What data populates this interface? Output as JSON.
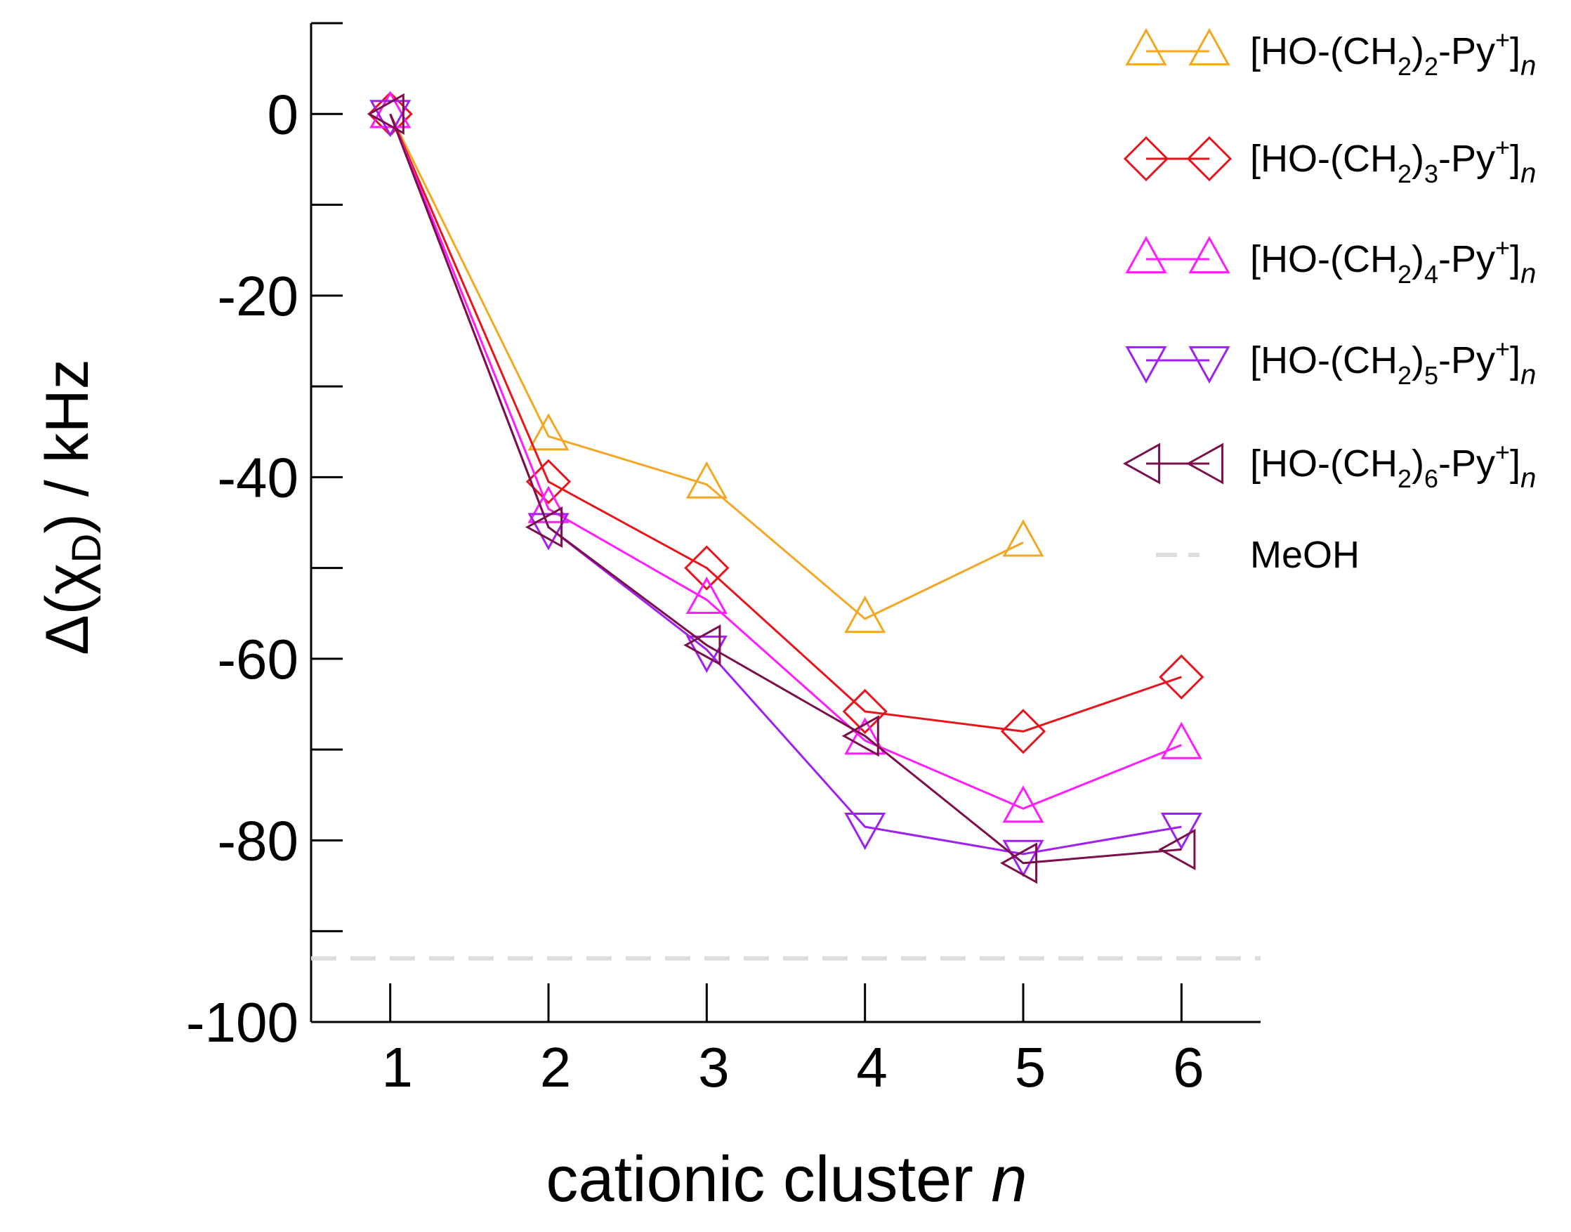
{
  "chart_data": {
    "type": "line",
    "title": "",
    "xlabel": "cationic cluster",
    "xlabel_var": "n",
    "ylabel": "Δ(χ",
    "ylabel_sub": "D",
    "ylabel_tail": ") / kHz",
    "xlim": [
      0.5,
      6.5
    ],
    "ylim": [
      -100,
      10
    ],
    "xticks": [
      1,
      2,
      3,
      4,
      5,
      6
    ],
    "yticks_major": [
      0,
      -20,
      -40,
      -60,
      -80,
      -100
    ],
    "yticks_minor": [
      10,
      -10,
      -30,
      -50,
      -70,
      -90
    ],
    "grid": false,
    "legend_position": "top-right",
    "x": [
      1,
      2,
      3,
      4,
      5,
      6
    ],
    "series": [
      {
        "name": "[HO-(CH2)2-Py+]n",
        "label_pre": "[HO-(CH",
        "label_sub": "2",
        "label_mid": ")",
        "label_sub2": "2",
        "label_post": "-Py",
        "label_sup": "+",
        "label_close": "]",
        "label_var": "n",
        "color": "#f5a623",
        "marker": "triangle-up",
        "x": [
          1,
          2,
          3,
          4,
          5
        ],
        "values": [
          0,
          -35.5,
          -40.8,
          -55.6,
          -47.2
        ]
      },
      {
        "name": "[HO-(CH2)3-Py+]n",
        "label_pre": "[HO-(CH",
        "label_sub": "2",
        "label_mid": ")",
        "label_sub2": "3",
        "label_post": "-Py",
        "label_sup": "+",
        "label_close": "]",
        "label_var": "n",
        "color": "#e8141c",
        "marker": "diamond",
        "x": [
          1,
          2,
          3,
          4,
          5,
          6
        ],
        "values": [
          0,
          -40.5,
          -50.0,
          -65.8,
          -68.0,
          -62.0
        ]
      },
      {
        "name": "[HO-(CH2)4-Py+]n",
        "label_pre": "[HO-(CH",
        "label_sub": "2",
        "label_mid": ")",
        "label_sub2": "4",
        "label_post": "-Py",
        "label_sup": "+",
        "label_close": "]",
        "label_var": "n",
        "color": "#ff1cff",
        "marker": "triangle-up",
        "x": [
          1,
          2,
          3,
          4,
          5,
          6
        ],
        "values": [
          0,
          -43.5,
          -53.5,
          -69.0,
          -76.5,
          -69.5
        ]
      },
      {
        "name": "[HO-(CH2)5-Py+]n",
        "label_pre": "[HO-(CH",
        "label_sub": "2",
        "label_mid": ")",
        "label_sub2": "5",
        "label_post": "-Py",
        "label_sup": "+",
        "label_close": "]",
        "label_var": "n",
        "color": "#a020f0",
        "marker": "triangle-down",
        "x": [
          1,
          2,
          3,
          4,
          5,
          6
        ],
        "values": [
          0,
          -45.5,
          -59.0,
          -78.5,
          -81.5,
          -78.5
        ]
      },
      {
        "name": "[HO-(CH2)6-Py+]n",
        "label_pre": "[HO-(CH",
        "label_sub": "2",
        "label_mid": ")",
        "label_sub2": "6",
        "label_post": "-Py",
        "label_sup": "+",
        "label_close": "]",
        "label_var": "n",
        "color": "#7b0f4a",
        "marker": "triangle-left",
        "x": [
          1,
          2,
          3,
          4,
          5,
          6
        ],
        "values": [
          0,
          -45.5,
          -58.5,
          -68.5,
          -82.5,
          -81.0
        ]
      }
    ],
    "reference_lines": [
      {
        "name": "MeOH",
        "label": "MeOH",
        "y": -93.0,
        "color": "#dddddd",
        "style": "dashed"
      }
    ]
  }
}
